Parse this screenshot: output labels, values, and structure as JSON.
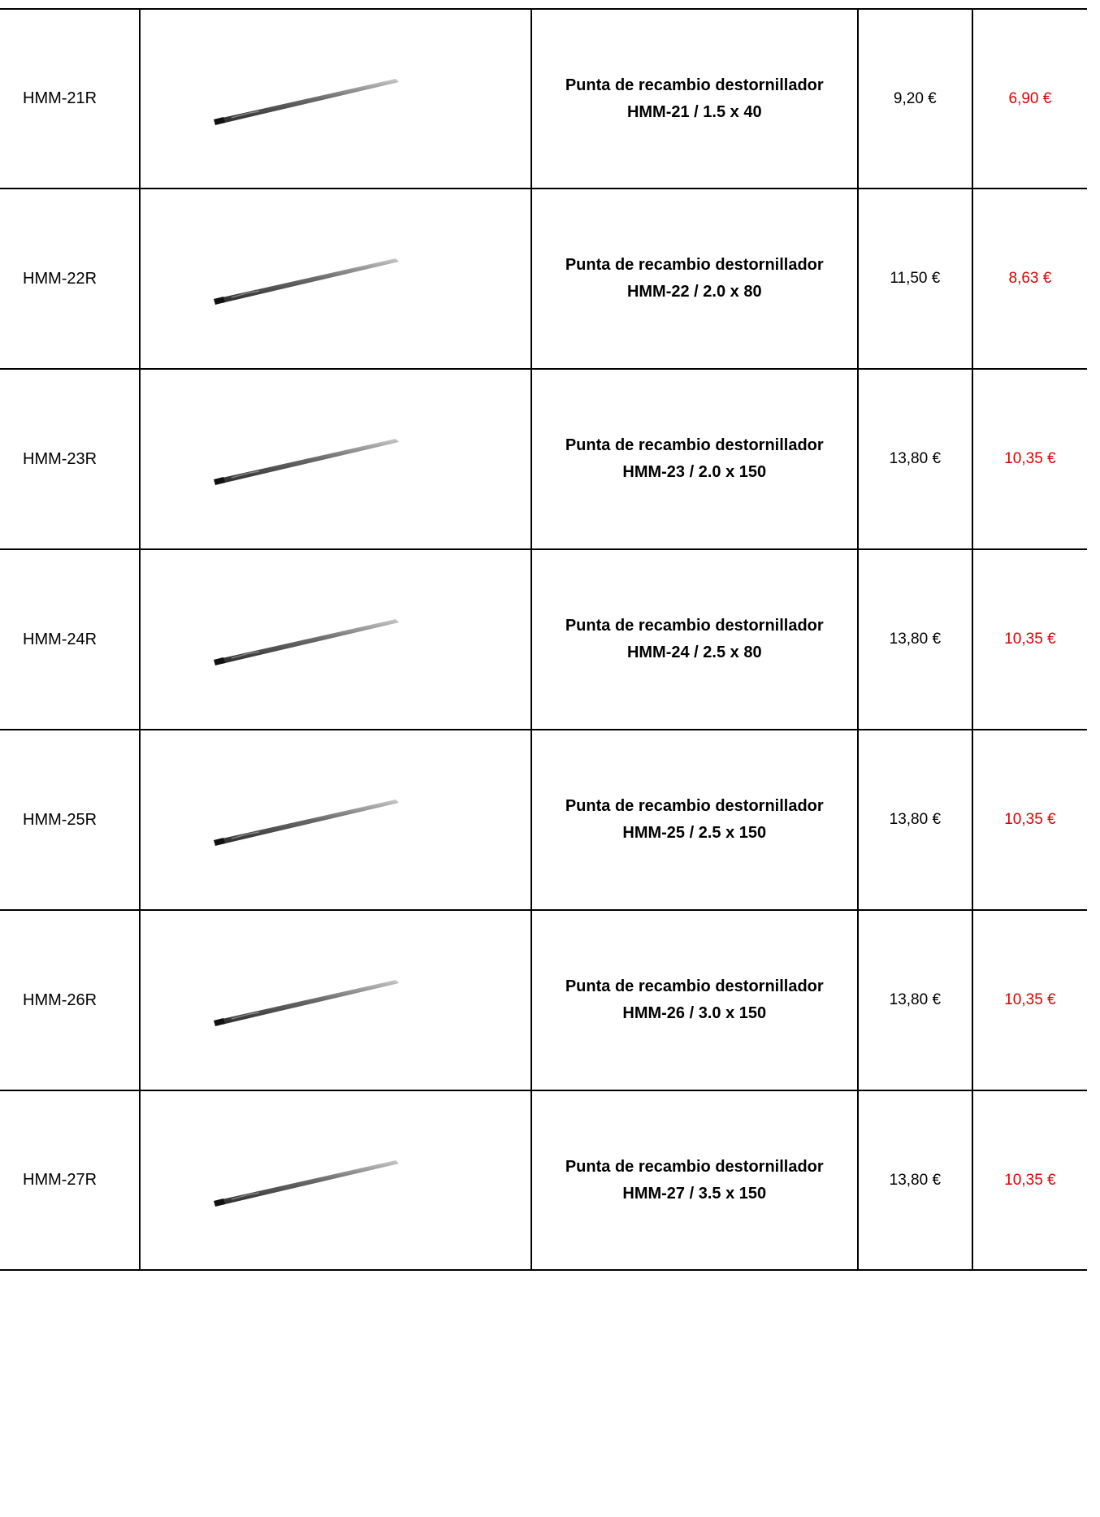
{
  "rows": [
    {
      "ref": "HMM-21R",
      "image_icon": "screwdriver-bit-icon",
      "description": "Punta de recambio destornillador HMM-21 / 1.5 x 40",
      "price": "9,20 €",
      "sale_price": "6,90 €"
    },
    {
      "ref": "HMM-22R",
      "image_icon": "screwdriver-bit-icon",
      "description": "Punta de recambio destornillador HMM-22 / 2.0 x 80",
      "price": "11,50 €",
      "sale_price": "8,63 €"
    },
    {
      "ref": "HMM-23R",
      "image_icon": "screwdriver-bit-icon",
      "description": "Punta de recambio destornillador HMM-23 / 2.0 x 150",
      "price": "13,80 €",
      "sale_price": "10,35 €"
    },
    {
      "ref": "HMM-24R",
      "image_icon": "screwdriver-bit-icon",
      "description": "Punta de recambio destornillador HMM-24 / 2.5 x 80",
      "price": "13,80 €",
      "sale_price": "10,35 €"
    },
    {
      "ref": "HMM-25R",
      "image_icon": "screwdriver-bit-icon",
      "description": "Punta de recambio destornillador HMM-25 / 2.5 x 150",
      "price": "13,80 €",
      "sale_price": "10,35 €"
    },
    {
      "ref": "HMM-26R",
      "image_icon": "screwdriver-bit-icon",
      "description": "Punta de recambio destornillador HMM-26 / 3.0 x 150",
      "price": "13,80 €",
      "sale_price": "10,35 €"
    },
    {
      "ref": "HMM-27R",
      "image_icon": "screwdriver-bit-icon",
      "description": "Punta de recambio destornillador HMM-27 / 3.5 x 150",
      "price": "13,80 €",
      "sale_price": "10,35 €"
    }
  ],
  "colors": {
    "sale_price": "#e00000",
    "border": "#000000"
  }
}
